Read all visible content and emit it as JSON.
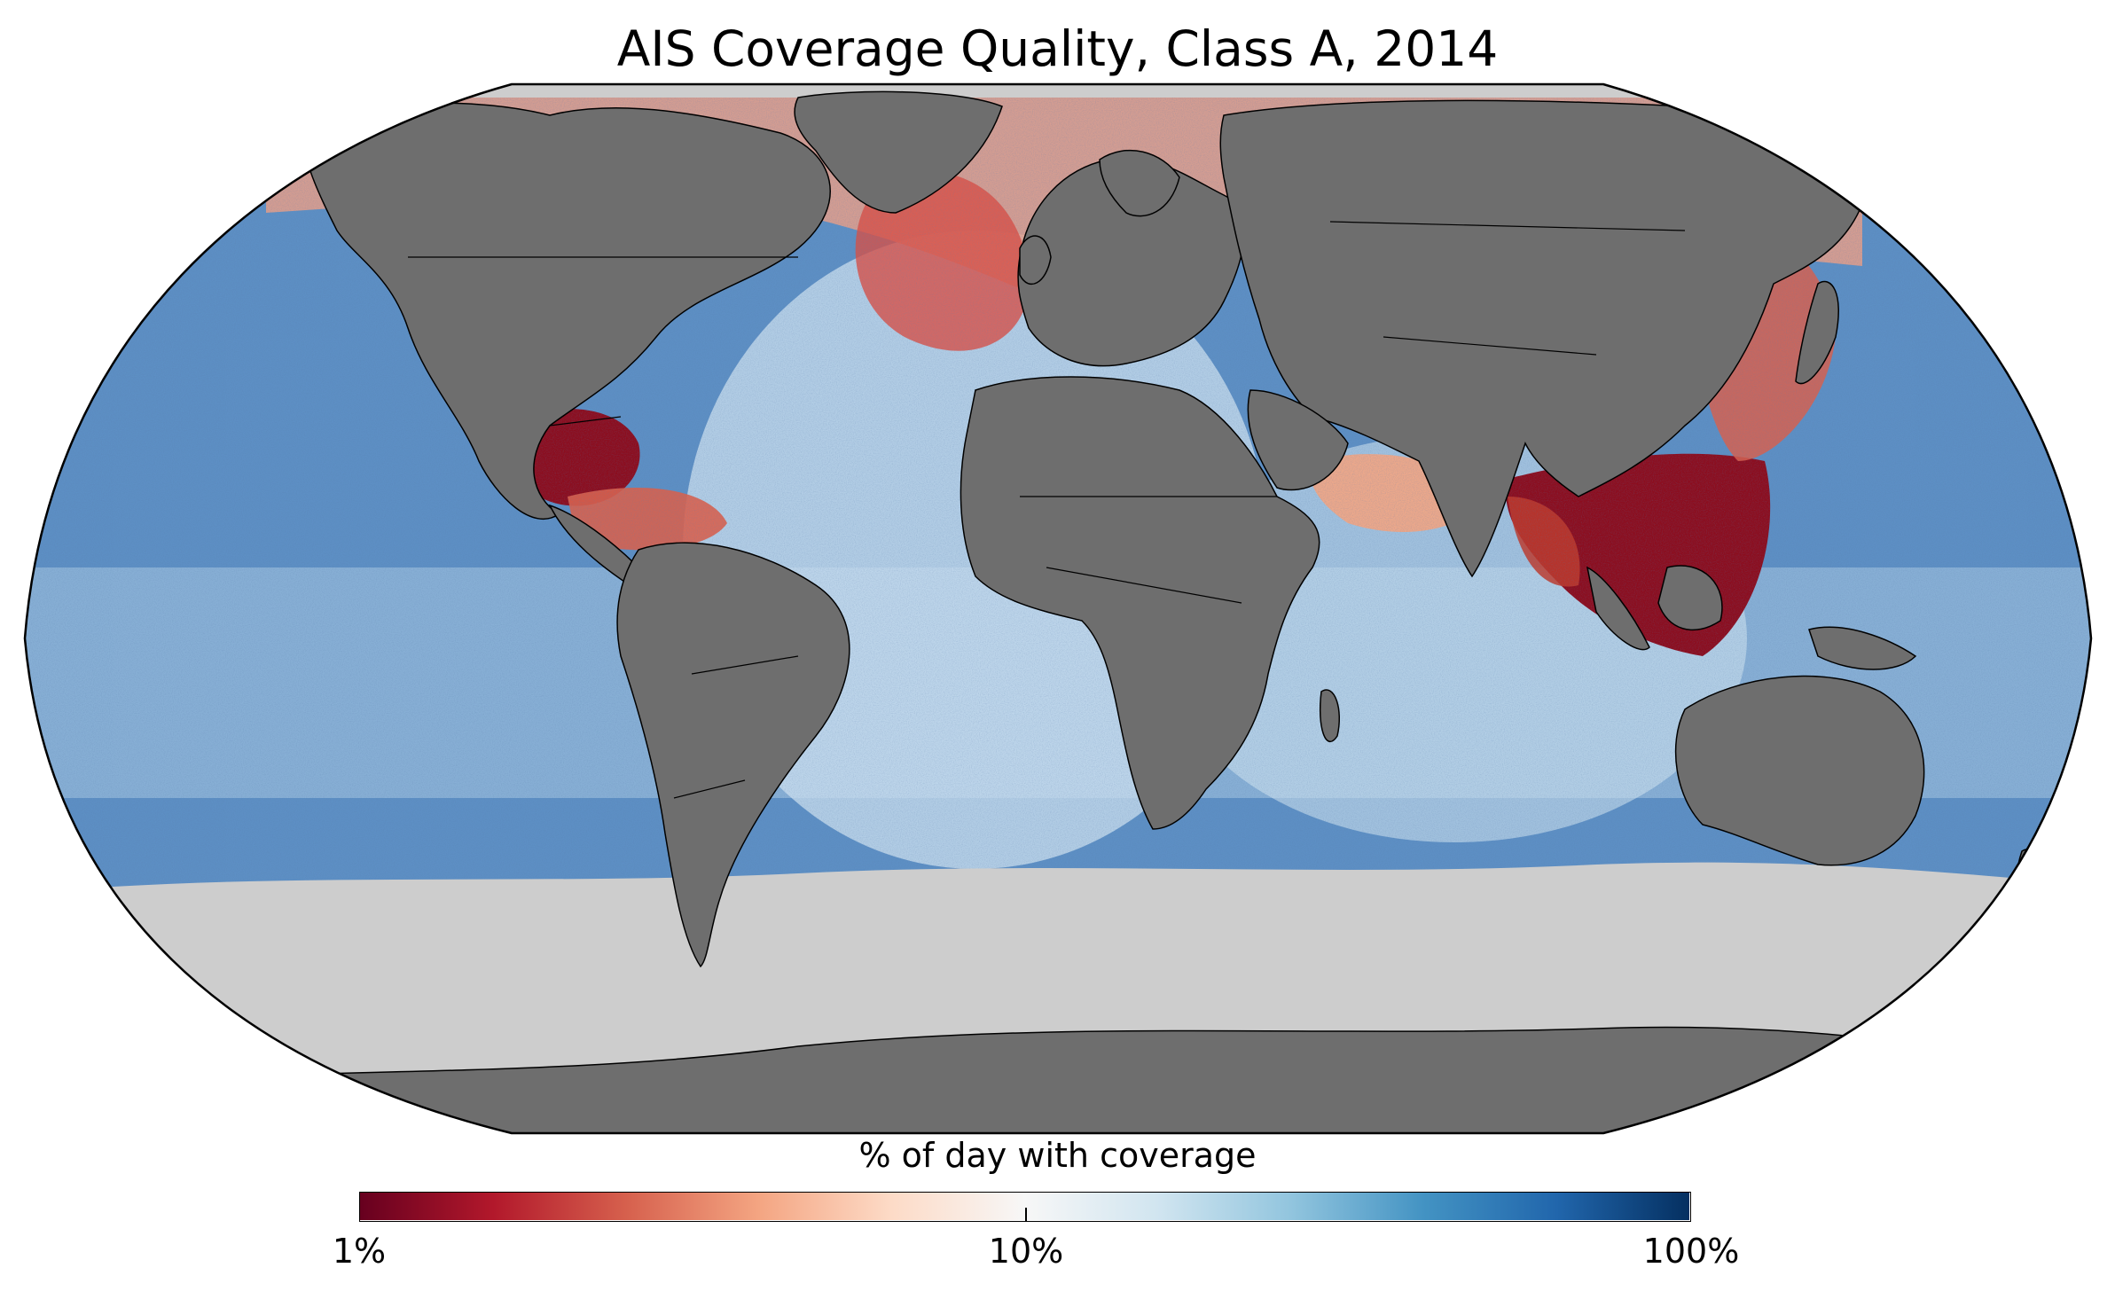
{
  "title": "AIS Coverage Quality, Class A, 2014",
  "colorbar": {
    "label": "% of day with coverage",
    "ticks": [
      "1%",
      "10%",
      "100%"
    ],
    "scale": "log",
    "range": [
      1,
      100
    ],
    "colormap": [
      "#67001f",
      "#b2182b",
      "#d6604d",
      "#f4a582",
      "#fddbc7",
      "#f7f7f7",
      "#d1e5f0",
      "#92c5de",
      "#4393c3",
      "#2166ac",
      "#053061"
    ]
  },
  "colors": {
    "land": "#6e6e6e",
    "no_data_ocean": "#cdcdcd",
    "border": "#000000",
    "high_coverage": "#2a5f9e",
    "low_coverage": "#8c0d1e"
  }
}
